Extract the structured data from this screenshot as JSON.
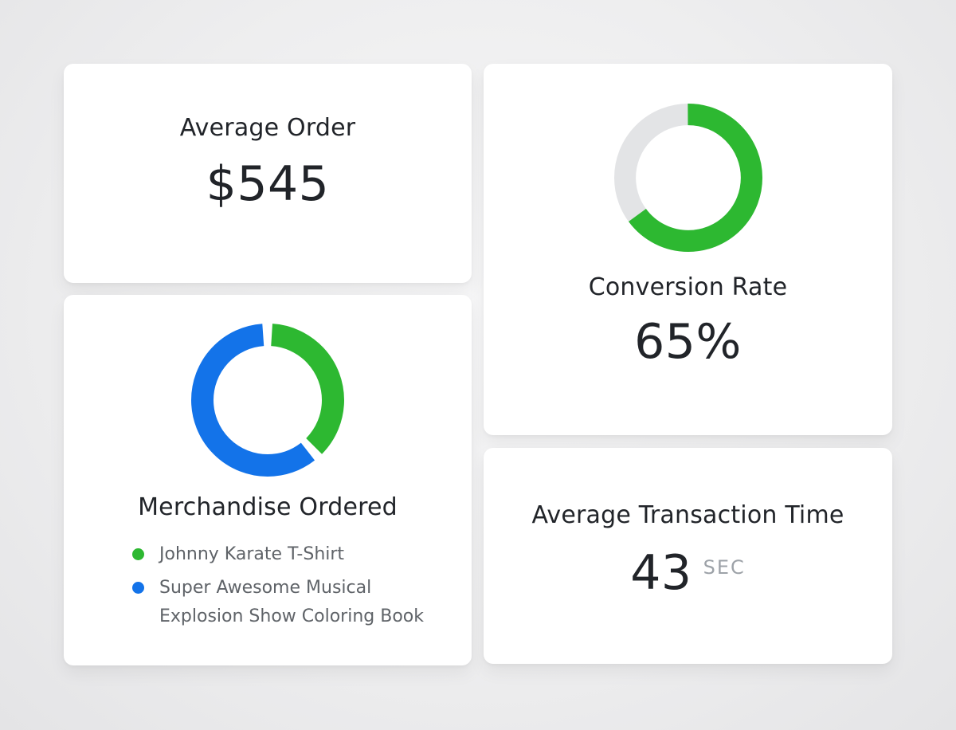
{
  "colors": {
    "green": "#2db831",
    "blue": "#1373e9",
    "track": "#e3e4e6",
    "text_dark": "#212429",
    "text_gray": "#5f6368",
    "unit_gray": "#9da2a8",
    "card_bg": "#ffffff",
    "page_bg": "#ededee"
  },
  "cards": {
    "average_order": {
      "title": "Average Order",
      "value": "$545"
    },
    "conversion_rate": {
      "title": "Conversion Rate",
      "value": "65%"
    },
    "merchandise": {
      "title": "Merchandise Ordered",
      "legend": [
        {
          "label": "Johnny Karate T-Shirt",
          "color_key": "green"
        },
        {
          "label": "Super Awesome Musical Explosion Show Coloring Book",
          "color_key": "blue"
        }
      ]
    },
    "transaction_time": {
      "title": "Average Transaction Time",
      "value": "43",
      "unit": "SEC"
    }
  },
  "donuts": {
    "conversion": {
      "track": true,
      "segments": [
        {
          "color_key": "green",
          "start": 0,
          "length": 65
        }
      ]
    },
    "merchandise": {
      "track": false,
      "segments": [
        {
          "color_key": "green",
          "start": 1,
          "length": 36.5
        },
        {
          "color_key": "blue",
          "start": 39.5,
          "length": 59.5
        }
      ]
    }
  },
  "chart_data": [
    {
      "type": "stat",
      "title": "Average Order",
      "value": "$545"
    },
    {
      "type": "donut",
      "title": "Conversion Rate",
      "value_pct": 65,
      "remainder_pct": 35,
      "display_value": "65%",
      "filled_color": "#2db831",
      "track_color": "#e3e4e6",
      "start_angle_deg": 0,
      "direction": "clockwise",
      "legend_position": "none"
    },
    {
      "type": "donut",
      "title": "Merchandise Ordered",
      "series": [
        {
          "name": "Johnny Karate T-Shirt",
          "percent": 38,
          "color": "#2db831"
        },
        {
          "name": "Super Awesome Musical Explosion Show Coloring Book",
          "percent": 62,
          "color": "#1373e9"
        }
      ],
      "start_angle_deg": 0,
      "direction": "clockwise",
      "legend_position": "bottom-left"
    },
    {
      "type": "stat",
      "title": "Average Transaction Time",
      "value": "43",
      "unit": "SEC"
    }
  ]
}
